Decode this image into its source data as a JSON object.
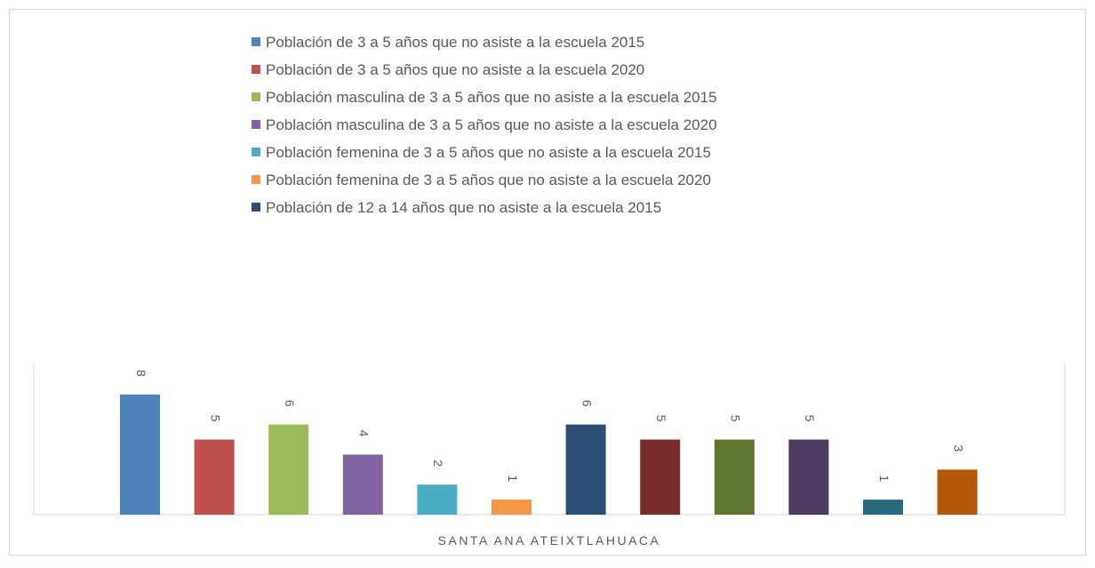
{
  "chart_data": {
    "type": "bar",
    "categories": [
      "SANTA ANA ATEIXTLAHUACA"
    ],
    "ylim": [
      0,
      10
    ],
    "series": [
      {
        "name": "Población de 3 a 5 años que no asiste a la escuela 2015",
        "color": "#4f81bd",
        "values": [
          8
        ]
      },
      {
        "name": "Población de 3 a 5 años que no asiste a la escuela 2020",
        "color": "#c0504d",
        "values": [
          5
        ]
      },
      {
        "name": "Población masculina de 3 a 5 años que no asiste a la escuela  2015",
        "color": "#9bbb59",
        "values": [
          6
        ]
      },
      {
        "name": "Población masculina de 3 a 5 años que no asiste a la escuela  2020",
        "color": "#8064a2",
        "values": [
          4
        ]
      },
      {
        "name": "Población femenina de 3 a 5 años que no asiste a la escuela  2015",
        "color": "#4bacc6",
        "values": [
          2
        ]
      },
      {
        "name": "Población femenina de 3 a 5 años que no asiste a la escuela  2020",
        "color": "#f79646",
        "values": [
          1
        ]
      },
      {
        "name": "Población de 12 a 14 años que no asiste a la escuela 2015",
        "color": "#2c4d75",
        "values": [
          6
        ]
      },
      {
        "color": "#772c2a",
        "values": [
          5
        ]
      },
      {
        "color": "#5f7530",
        "values": [
          5
        ]
      },
      {
        "color": "#4d3b62",
        "values": [
          5
        ]
      },
      {
        "color": "#276a7c",
        "values": [
          1
        ]
      },
      {
        "color": "#b65708",
        "values": [
          3
        ]
      }
    ]
  }
}
